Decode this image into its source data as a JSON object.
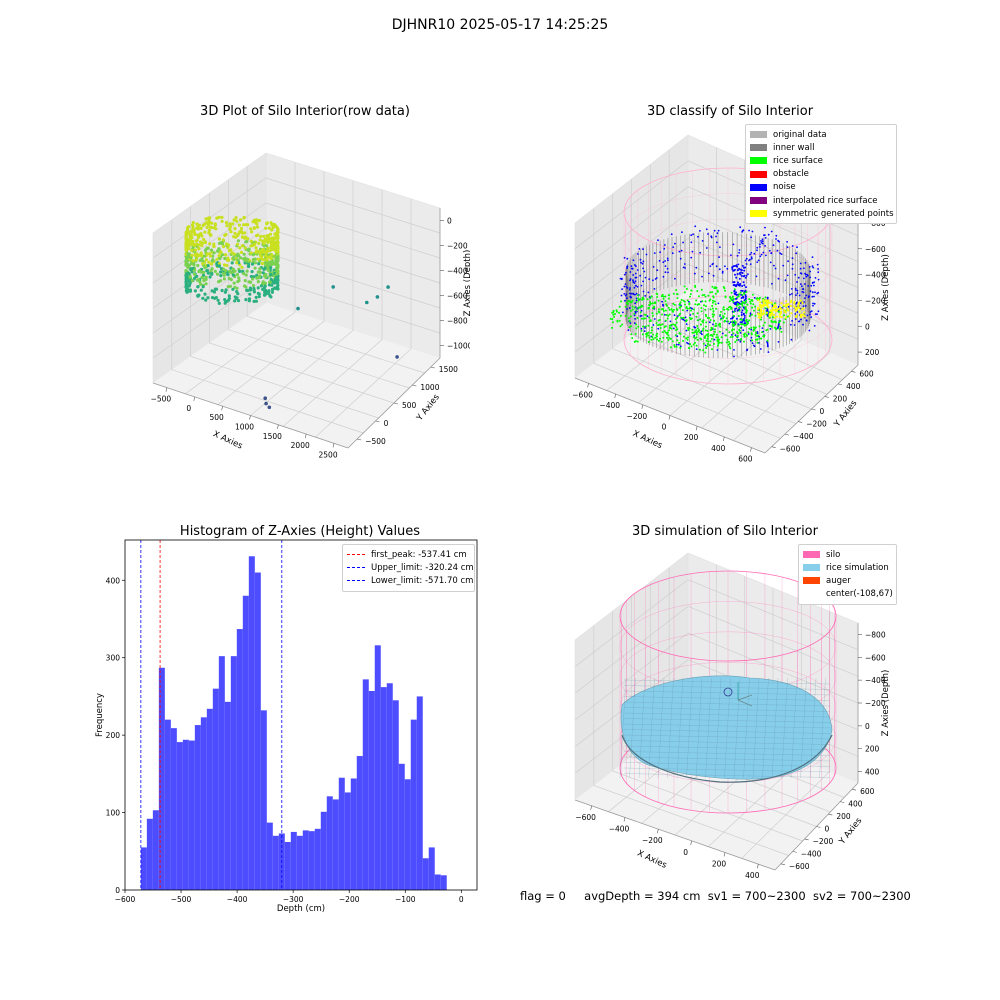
{
  "suptitle": "DJHNR10 2025-05-17 14:25:25",
  "footer": {
    "flag": "flag = 0",
    "avg_depth": "avgDepth = 394 cm",
    "sv1": "sv1 = 700~2300",
    "sv2": "sv2 = 700~2300"
  },
  "chart_data": [
    {
      "type": "scatter",
      "title": "3D Plot of Silo Interior(row data)",
      "xlabel": "X Axies",
      "ylabel": "Y Axies",
      "zlabel": "Z Axies (Depth)",
      "x_ticks": [
        "−500",
        "0",
        "500",
        "1000",
        "1500",
        "2000",
        "2500"
      ],
      "y_ticks": [
        "−500",
        "0",
        "500",
        "1000",
        "1500"
      ],
      "z_ticks": [
        "0",
        "−200",
        "−400",
        "−600",
        "−800",
        "−1000"
      ],
      "outliers": [
        {
          "x": 900,
          "y": 600,
          "z": -600
        },
        {
          "x": 1000,
          "y": 1200,
          "z": -580
        },
        {
          "x": 1500,
          "y": 1300,
          "z": -650
        },
        {
          "x": 1600,
          "y": 1400,
          "z": -620
        },
        {
          "x": 1700,
          "y": 1500,
          "z": -560
        },
        {
          "x": 2200,
          "y": 1100,
          "z": -900
        },
        {
          "x": 1100,
          "y": -300,
          "z": -1000
        },
        {
          "x": 1200,
          "y": -400,
          "z": -1000
        },
        {
          "x": 1300,
          "y": -450,
          "z": -1000
        }
      ]
    },
    {
      "type": "scatter",
      "title": "3D classify of Silo Interior",
      "xlabel": "X Axies",
      "ylabel": "Y Axies",
      "zlabel": "Z Axies (Depth)",
      "x_ticks": [
        "−600",
        "−400",
        "−200",
        "0",
        "200",
        "400",
        "600"
      ],
      "y_ticks": [
        "−600",
        "−400",
        "−200",
        "0",
        "200",
        "400",
        "600"
      ],
      "z_ticks": [
        "−800",
        "−600",
        "−400",
        "−200",
        "0",
        "200"
      ],
      "legend": [
        {
          "label": "original data",
          "color": "#b3b3b3"
        },
        {
          "label": "inner wall",
          "color": "#808080"
        },
        {
          "label": "rice surface",
          "color": "#00ff00"
        },
        {
          "label": "obstacle",
          "color": "#ff0000"
        },
        {
          "label": "noise",
          "color": "#0000ff"
        },
        {
          "label": "interpolated rice surface",
          "color": "#800080"
        },
        {
          "label": "symmetric generated points",
          "color": "#ffff00"
        }
      ]
    },
    {
      "type": "bar",
      "title": "Histogram of Z-Axies (Height) Values",
      "xlabel": "Depth (cm)",
      "ylabel": "Frequency",
      "xlim": [
        -600,
        28
      ],
      "ylim": [
        0,
        452
      ],
      "x_ticks": [
        -600,
        -500,
        -400,
        -300,
        -200,
        -100,
        0
      ],
      "y_ticks": [
        0,
        100,
        200,
        300,
        400
      ],
      "bin_start": -571.7,
      "bin_width": 10.7,
      "values": [
        55,
        92,
        103,
        287,
        220,
        209,
        191,
        194,
        193,
        213,
        223,
        234,
        260,
        302,
        243,
        302,
        337,
        380,
        431,
        410,
        232,
        87,
        70,
        73,
        62,
        75,
        70,
        77,
        76,
        79,
        101,
        121,
        117,
        145,
        126,
        144,
        173,
        272,
        257,
        316,
        262,
        267,
        245,
        163,
        143,
        220,
        250,
        41,
        55,
        20,
        19
      ],
      "bar_color": "#4d4dff",
      "vlines": [
        {
          "label": "first_peak: -537.41 cm",
          "x": -537.41,
          "color": "#ff0000"
        },
        {
          "label": "Upper_limit: -320.24 cm",
          "x": -320.24,
          "color": "#0000ff"
        },
        {
          "label": "Lower_limit: -571.70 cm",
          "x": -571.7,
          "color": "#0000ff"
        }
      ]
    },
    {
      "type": "surface",
      "title": "3D simulation of Silo Interior",
      "xlabel": "X Axies",
      "ylabel": "Y Axies",
      "zlabel": "Z Axies (Depth)",
      "x_ticks": [
        "−600",
        "−400",
        "−200",
        "0",
        "200",
        "400"
      ],
      "y_ticks": [
        "−600",
        "−400",
        "−200",
        "0",
        "200",
        "400",
        "600"
      ],
      "z_ticks": [
        "−800",
        "−600",
        "−400",
        "−200",
        "0",
        "200",
        "400"
      ],
      "legend": [
        {
          "label": "silo",
          "color": "#ff69b4"
        },
        {
          "label": "rice simulation",
          "color": "#87ceeb"
        },
        {
          "label": "auger",
          "color": "#ff4500"
        },
        {
          "label": "center(-108,67)",
          "color": ""
        }
      ]
    }
  ]
}
